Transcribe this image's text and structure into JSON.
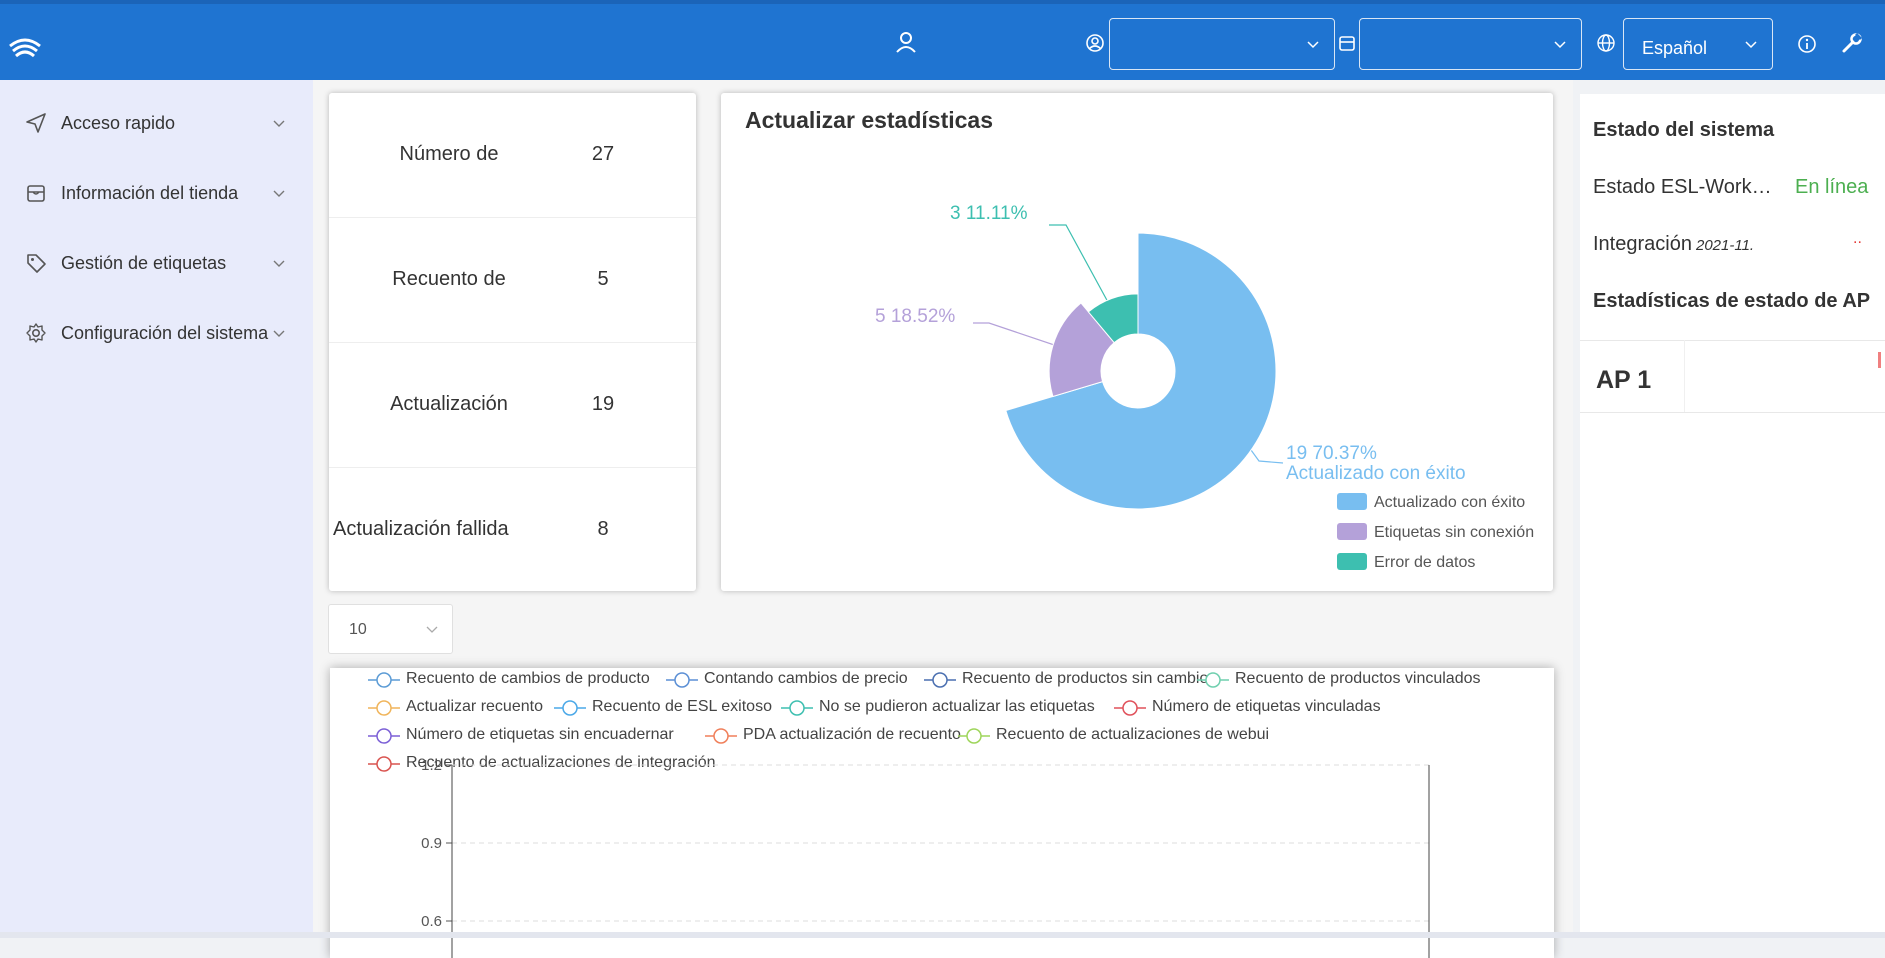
{
  "colors": {
    "topbar": "#1f74d1",
    "sidebar": "#e8ebfb",
    "success": "#4caf50",
    "pie_success": "#78bef0",
    "pie_offline": "#b4a1d9",
    "pie_error": "#3dbfb0"
  },
  "topbar": {
    "language": "Español",
    "store_select": "",
    "account_select": "",
    "icons": [
      "logo-icon",
      "user-icon",
      "account-icon",
      "store-icon",
      "globe-icon",
      "info-icon",
      "wrench-icon"
    ]
  },
  "sidebar": {
    "items": [
      {
        "label": "Acceso rapido",
        "icon": "send-icon"
      },
      {
        "label": "Información del tienda",
        "icon": "store-icon"
      },
      {
        "label": "Gestión de etiquetas",
        "icon": "tag-icon"
      },
      {
        "label": "Configuración del sistema",
        "icon": "gear-icon"
      }
    ]
  },
  "stats": [
    {
      "name": "Número de",
      "value": "27"
    },
    {
      "name": "Recuento de",
      "value": "5"
    },
    {
      "name": "Actualización",
      "value": "19"
    },
    {
      "name": "Actualización fallida",
      "value": "8"
    }
  ],
  "pie": {
    "title": "Actualizar estadísticas",
    "label_success_1": "19  70.37%",
    "label_success_2": "Actualizado con éxito",
    "label_offline": "5  18.52%",
    "label_error": "3  11.11%",
    "legend": [
      "Actualizado con éxito",
      "Etiquetas sin conexión",
      "Error de datos"
    ]
  },
  "chart_data": [
    {
      "type": "pie",
      "title": "Actualizar estadísticas",
      "categories": [
        "Actualizado con éxito",
        "Etiquetas sin conexión",
        "Error de datos"
      ],
      "values": [
        19,
        5,
        3
      ],
      "percentages": [
        70.37,
        18.52,
        11.11
      ],
      "legend_position": "bottom-right"
    },
    {
      "type": "line",
      "series": [
        {
          "name": "Recuento de cambios de producto",
          "values": []
        },
        {
          "name": "Contando cambios de precio",
          "values": []
        },
        {
          "name": "Recuento de productos sin cambios",
          "values": []
        },
        {
          "name": "Recuento de productos vinculados",
          "values": []
        },
        {
          "name": "Actualizar recuento",
          "values": []
        },
        {
          "name": "Recuento de ESL exitoso",
          "values": []
        },
        {
          "name": "No se pudieron actualizar las etiquetas",
          "values": []
        },
        {
          "name": "Número de etiquetas vinculadas",
          "values": []
        },
        {
          "name": "Número de etiquetas sin encuadernar",
          "values": []
        },
        {
          "name": "PDA actualización de recuento",
          "values": []
        },
        {
          "name": "Recuento de actualizaciones de webui",
          "values": []
        },
        {
          "name": "Recuento de actualizaciones de integración",
          "values": []
        }
      ],
      "yticks": [
        "1.2",
        "0.9",
        "0.6"
      ],
      "ylim": [
        0,
        1.2
      ],
      "grid": true,
      "legend_position": "top"
    }
  ],
  "page_size": "10",
  "right_panel": {
    "system_status_title": "Estado del sistema",
    "esl_work_label": "Estado ESL-Work…",
    "esl_work_status": "En línea",
    "integration_label": "Integración",
    "integration_date": "2021-11.",
    "integration_status": "..",
    "ap_stats_title": "Estadísticas de estado de AP",
    "ap_name": "AP 1"
  }
}
